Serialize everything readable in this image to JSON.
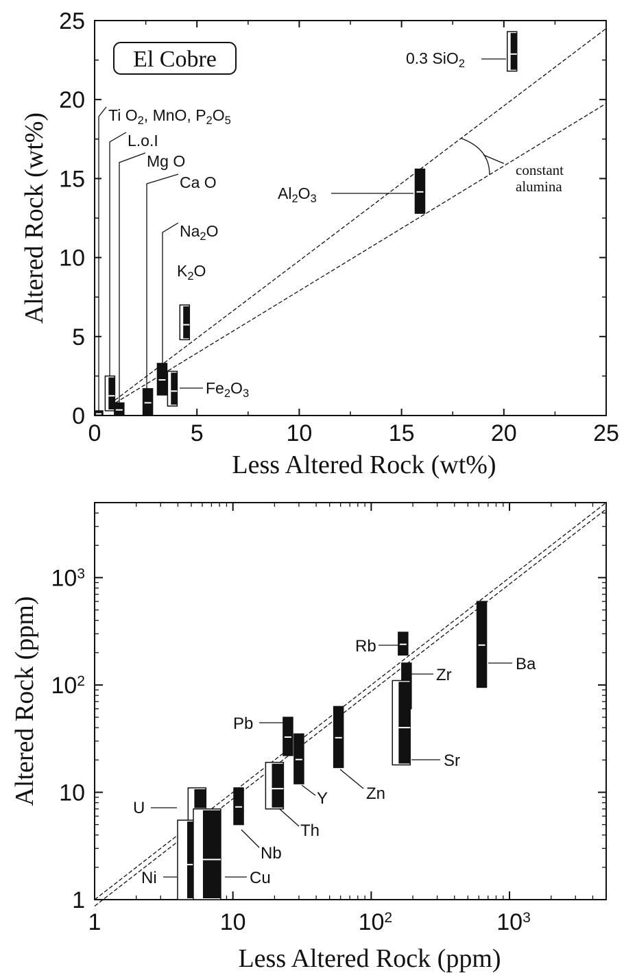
{
  "colors": {
    "ink": "#111111",
    "open_fill": "#ffffff",
    "background": "#ffffff"
  },
  "chart_data": [
    {
      "type": "scatter",
      "panel_title": "El Cobre",
      "xlabel": "Less Altered Rock (wt%)",
      "ylabel": "Altered Rock (wt%)",
      "xlim": [
        0,
        25
      ],
      "ylim": [
        0,
        25
      ],
      "xticks": [
        "0",
        "5",
        "10",
        "15",
        "20",
        "25"
      ],
      "yticks": [
        "0",
        "5",
        "10",
        "15",
        "20",
        "25"
      ],
      "isocon_lines": [
        {
          "slope": 0.98
        },
        {
          "slope": 0.79
        }
      ],
      "annotation": {
        "line1": "constant",
        "line2": "alumina"
      },
      "oxides": [
        {
          "sub": [
            [
              "Ti O",
              "n"
            ],
            [
              "2",
              "s"
            ],
            [
              ", MnO, P",
              "n"
            ],
            [
              "2",
              "s"
            ],
            [
              "O",
              "n"
            ],
            [
              "5",
              "s"
            ]
          ],
          "x": 0.2,
          "ymin": 0,
          "ymax": 0.3,
          "open": false
        },
        {
          "sub": [
            [
              "L.o.I",
              "n"
            ]
          ],
          "x": 0.75,
          "ymin": 0.3,
          "ymax": 2.5,
          "open": true
        },
        {
          "sub": [
            [
              "Mg O",
              "n"
            ]
          ],
          "x": 1.2,
          "ymin": 0,
          "ymax": 0.8,
          "open": false
        },
        {
          "sub": [
            [
              "Ca O",
              "n"
            ]
          ],
          "x": 2.6,
          "ymin": 0,
          "ymax": 1.7,
          "open": false
        },
        {
          "sub": [
            [
              "Na",
              "n"
            ],
            [
              "2",
              "s"
            ],
            [
              "O",
              "n"
            ]
          ],
          "x": 3.3,
          "ymin": 1.3,
          "ymax": 3.3,
          "open": false
        },
        {
          "sub": [
            [
              "K",
              "n"
            ],
            [
              "2",
              "s"
            ],
            [
              "O",
              "n"
            ]
          ],
          "x": 4.4,
          "ymin": 4.8,
          "ymax": 7.0,
          "open": true
        },
        {
          "sub": [
            [
              "Fe",
              "n"
            ],
            [
              "2",
              "s"
            ],
            [
              "O",
              "n"
            ],
            [
              "3",
              "s"
            ]
          ],
          "x": 3.8,
          "ymin": 0.6,
          "ymax": 2.8,
          "open": true
        },
        {
          "sub": [
            [
              "Al",
              "n"
            ],
            [
              "2",
              "s"
            ],
            [
              "O",
              "n"
            ],
            [
              "3",
              "s"
            ]
          ],
          "x": 15.9,
          "ymin": 12.8,
          "ymax": 15.6,
          "open": false
        },
        {
          "sub": [
            [
              "0.3 SiO",
              "n"
            ],
            [
              "2",
              "s"
            ]
          ],
          "x": 20.4,
          "ymin": 21.8,
          "ymax": 24.3,
          "open": true
        }
      ]
    },
    {
      "type": "scatter",
      "xlabel": "Less Altered Rock (ppm)",
      "ylabel": "Altered Rock (ppm)",
      "xscale": "log",
      "yscale": "log",
      "xlim": [
        1,
        5000
      ],
      "ylim": [
        1,
        5000
      ],
      "xticks": [
        {
          "base": "1",
          "exp": ""
        },
        {
          "base": "10",
          "exp": ""
        },
        {
          "base": "10",
          "exp": "2"
        },
        {
          "base": "10",
          "exp": "3"
        }
      ],
      "yticks": [
        {
          "base": "1",
          "exp": ""
        },
        {
          "base": "10",
          "exp": ""
        },
        {
          "base": "10",
          "exp": "2"
        },
        {
          "base": "10",
          "exp": "3"
        }
      ],
      "isocon_lines": [
        {
          "slope": 1.0
        },
        {
          "slope": 0.87
        }
      ],
      "elements": [
        {
          "name": "U",
          "x": 5.5,
          "ymin": 5,
          "ymax": 11,
          "open": true
        },
        {
          "name": "Ni",
          "x": 5.0,
          "ymin": 0.95,
          "ymax": 5.5,
          "open": true
        },
        {
          "name": "Cu",
          "x": 6.5,
          "ymin": 0.95,
          "ymax": 7,
          "open": true
        },
        {
          "name": "Nb",
          "x": 11,
          "ymin": 5,
          "ymax": 11,
          "open": false
        },
        {
          "name": "Th",
          "x": 20,
          "ymin": 7,
          "ymax": 19,
          "open": true
        },
        {
          "name": "Pb",
          "x": 25,
          "ymin": 22,
          "ymax": 50,
          "open": false
        },
        {
          "name": "Y",
          "x": 30,
          "ymin": 12,
          "ymax": 35,
          "open": false
        },
        {
          "name": "Zn",
          "x": 58,
          "ymin": 17,
          "ymax": 63,
          "open": false
        },
        {
          "name": "Rb",
          "x": 170,
          "ymin": 190,
          "ymax": 310,
          "open": false
        },
        {
          "name": "Zr",
          "x": 180,
          "ymin": 60,
          "ymax": 160,
          "open": false
        },
        {
          "name": "Sr",
          "x": 165,
          "ymin": 18,
          "ymax": 110,
          "open": true
        },
        {
          "name": "Ba",
          "x": 630,
          "ymin": 95,
          "ymax": 600,
          "open": false
        }
      ]
    }
  ]
}
